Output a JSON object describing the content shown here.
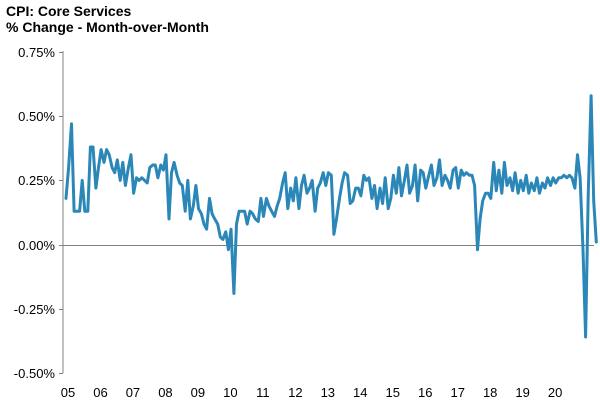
{
  "chart_data": {
    "type": "line",
    "title": "CPI: Core Services",
    "subtitle": "% Change - Month-over-Month",
    "xlabel": "",
    "ylabel": "",
    "x_tick_labels": [
      "05",
      "06",
      "07",
      "08",
      "09",
      "10",
      "11",
      "12",
      "13",
      "14",
      "15",
      "16",
      "17",
      "18",
      "19",
      "20"
    ],
    "y_tick_labels": [
      "0.75%",
      "0.50%",
      "0.25%",
      "0.00%",
      "-0.25%",
      "-0.50%"
    ],
    "y_ticks": [
      0.75,
      0.5,
      0.25,
      0.0,
      -0.25,
      -0.5
    ],
    "ylim": [
      -0.5,
      0.75
    ],
    "xlim": [
      2005.0,
      2020.95
    ],
    "grid": false,
    "legend": "none",
    "colors": {
      "line": "#2a87b8",
      "axis": "#808080"
    },
    "series": [
      {
        "values": [
          [
            2005.0,
            0.18
          ],
          [
            2005.08,
            0.3
          ],
          [
            2005.17,
            0.47
          ],
          [
            2005.25,
            0.13
          ],
          [
            2005.33,
            0.13
          ],
          [
            2005.42,
            0.13
          ],
          [
            2005.5,
            0.25
          ],
          [
            2005.58,
            0.13
          ],
          [
            2005.67,
            0.13
          ],
          [
            2005.75,
            0.38
          ],
          [
            2005.83,
            0.38
          ],
          [
            2005.92,
            0.22
          ],
          [
            2006.0,
            0.3
          ],
          [
            2006.08,
            0.37
          ],
          [
            2006.17,
            0.32
          ],
          [
            2006.25,
            0.37
          ],
          [
            2006.33,
            0.35
          ],
          [
            2006.42,
            0.3
          ],
          [
            2006.5,
            0.28
          ],
          [
            2006.58,
            0.33
          ],
          [
            2006.67,
            0.25
          ],
          [
            2006.75,
            0.32
          ],
          [
            2006.83,
            0.23
          ],
          [
            2006.92,
            0.3
          ],
          [
            2007.0,
            0.35
          ],
          [
            2007.08,
            0.2
          ],
          [
            2007.17,
            0.26
          ],
          [
            2007.25,
            0.25
          ],
          [
            2007.33,
            0.26
          ],
          [
            2007.42,
            0.25
          ],
          [
            2007.5,
            0.24
          ],
          [
            2007.58,
            0.3
          ],
          [
            2007.67,
            0.31
          ],
          [
            2007.75,
            0.31
          ],
          [
            2007.83,
            0.26
          ],
          [
            2007.92,
            0.31
          ],
          [
            2008.0,
            0.29
          ],
          [
            2008.08,
            0.35
          ],
          [
            2008.17,
            0.1
          ],
          [
            2008.25,
            0.28
          ],
          [
            2008.33,
            0.32
          ],
          [
            2008.42,
            0.27
          ],
          [
            2008.5,
            0.24
          ],
          [
            2008.58,
            0.23
          ],
          [
            2008.67,
            0.13
          ],
          [
            2008.75,
            0.25
          ],
          [
            2008.83,
            0.1
          ],
          [
            2008.92,
            0.15
          ],
          [
            2009.0,
            0.23
          ],
          [
            2009.08,
            0.14
          ],
          [
            2009.17,
            0.12
          ],
          [
            2009.25,
            0.08
          ],
          [
            2009.33,
            0.06
          ],
          [
            2009.42,
            0.18
          ],
          [
            2009.5,
            0.12
          ],
          [
            2009.58,
            0.1
          ],
          [
            2009.67,
            0.08
          ],
          [
            2009.75,
            0.03
          ],
          [
            2009.83,
            0.02
          ],
          [
            2009.92,
            0.05
          ],
          [
            2010.0,
            -0.02
          ],
          [
            2010.08,
            0.06
          ],
          [
            2010.17,
            -0.19
          ],
          [
            2010.25,
            0.08
          ],
          [
            2010.33,
            0.13
          ],
          [
            2010.42,
            0.13
          ],
          [
            2010.5,
            0.13
          ],
          [
            2010.58,
            0.08
          ],
          [
            2010.67,
            0.13
          ],
          [
            2010.75,
            0.12
          ],
          [
            2010.83,
            0.1
          ],
          [
            2010.92,
            0.09
          ],
          [
            2011.0,
            0.18
          ],
          [
            2011.08,
            0.11
          ],
          [
            2011.17,
            0.18
          ],
          [
            2011.25,
            0.15
          ],
          [
            2011.33,
            0.13
          ],
          [
            2011.42,
            0.11
          ],
          [
            2011.5,
            0.15
          ],
          [
            2011.58,
            0.18
          ],
          [
            2011.67,
            0.24
          ],
          [
            2011.75,
            0.28
          ],
          [
            2011.83,
            0.14
          ],
          [
            2011.92,
            0.22
          ],
          [
            2012.0,
            0.17
          ],
          [
            2012.08,
            0.26
          ],
          [
            2012.17,
            0.14
          ],
          [
            2012.25,
            0.23
          ],
          [
            2012.33,
            0.27
          ],
          [
            2012.42,
            0.2
          ],
          [
            2012.5,
            0.22
          ],
          [
            2012.58,
            0.25
          ],
          [
            2012.67,
            0.13
          ],
          [
            2012.75,
            0.22
          ],
          [
            2012.83,
            0.24
          ],
          [
            2012.92,
            0.28
          ],
          [
            2013.0,
            0.23
          ],
          [
            2013.08,
            0.28
          ],
          [
            2013.17,
            0.27
          ],
          [
            2013.25,
            0.04
          ],
          [
            2013.33,
            0.1
          ],
          [
            2013.42,
            0.18
          ],
          [
            2013.5,
            0.24
          ],
          [
            2013.58,
            0.28
          ],
          [
            2013.67,
            0.27
          ],
          [
            2013.75,
            0.16
          ],
          [
            2013.83,
            0.17
          ],
          [
            2013.92,
            0.22
          ],
          [
            2014.0,
            0.22
          ],
          [
            2014.08,
            0.19
          ],
          [
            2014.17,
            0.27
          ],
          [
            2014.25,
            0.25
          ],
          [
            2014.33,
            0.26
          ],
          [
            2014.42,
            0.18
          ],
          [
            2014.5,
            0.23
          ],
          [
            2014.58,
            0.14
          ],
          [
            2014.67,
            0.22
          ],
          [
            2014.75,
            0.16
          ],
          [
            2014.83,
            0.26
          ],
          [
            2014.92,
            0.14
          ],
          [
            2015.0,
            0.18
          ],
          [
            2015.08,
            0.27
          ],
          [
            2015.17,
            0.2
          ],
          [
            2015.25,
            0.3
          ],
          [
            2015.33,
            0.19
          ],
          [
            2015.42,
            0.25
          ],
          [
            2015.5,
            0.31
          ],
          [
            2015.58,
            0.2
          ],
          [
            2015.67,
            0.23
          ],
          [
            2015.75,
            0.31
          ],
          [
            2015.83,
            0.17
          ],
          [
            2015.92,
            0.29
          ],
          [
            2016.0,
            0.28
          ],
          [
            2016.08,
            0.22
          ],
          [
            2016.17,
            0.27
          ],
          [
            2016.25,
            0.31
          ],
          [
            2016.33,
            0.23
          ],
          [
            2016.42,
            0.26
          ],
          [
            2016.5,
            0.33
          ],
          [
            2016.58,
            0.23
          ],
          [
            2016.67,
            0.27
          ],
          [
            2016.75,
            0.25
          ],
          [
            2016.83,
            0.22
          ],
          [
            2016.92,
            0.29
          ],
          [
            2017.0,
            0.3
          ],
          [
            2017.08,
            0.22
          ],
          [
            2017.17,
            0.29
          ],
          [
            2017.25,
            0.27
          ],
          [
            2017.33,
            0.28
          ],
          [
            2017.42,
            0.27
          ],
          [
            2017.5,
            0.27
          ],
          [
            2017.58,
            0.23
          ],
          [
            2017.67,
            -0.02
          ],
          [
            2017.75,
            0.1
          ],
          [
            2017.83,
            0.17
          ],
          [
            2017.92,
            0.2
          ],
          [
            2018.0,
            0.2
          ],
          [
            2018.08,
            0.18
          ],
          [
            2018.17,
            0.32
          ],
          [
            2018.25,
            0.21
          ],
          [
            2018.33,
            0.29
          ],
          [
            2018.42,
            0.2
          ],
          [
            2018.5,
            0.32
          ],
          [
            2018.58,
            0.23
          ],
          [
            2018.67,
            0.26
          ],
          [
            2018.75,
            0.21
          ],
          [
            2018.83,
            0.28
          ],
          [
            2018.92,
            0.2
          ],
          [
            2019.0,
            0.25
          ],
          [
            2019.08,
            0.21
          ],
          [
            2019.17,
            0.27
          ],
          [
            2019.25,
            0.2
          ],
          [
            2019.33,
            0.24
          ],
          [
            2019.42,
            0.21
          ],
          [
            2019.5,
            0.26
          ],
          [
            2019.58,
            0.2
          ],
          [
            2019.67,
            0.24
          ],
          [
            2019.75,
            0.22
          ],
          [
            2019.83,
            0.26
          ],
          [
            2019.92,
            0.23
          ],
          [
            2020.0,
            0.26
          ],
          [
            2020.08,
            0.24
          ],
          [
            2020.17,
            0.26
          ],
          [
            2020.25,
            0.26
          ],
          [
            2020.33,
            0.27
          ],
          [
            2020.42,
            0.26
          ],
          [
            2020.5,
            0.27
          ],
          [
            2020.58,
            0.26
          ],
          [
            2020.67,
            0.22
          ],
          [
            2020.75,
            0.35
          ],
          [
            2020.83,
            0.26
          ],
          [
            2020.92,
            -0.02
          ],
          [
            2021.0,
            -0.36
          ],
          [
            2021.08,
            0.19
          ],
          [
            2021.17,
            0.58
          ],
          [
            2021.25,
            0.17
          ],
          [
            2021.33,
            0.01
          ]
        ]
      }
    ]
  }
}
